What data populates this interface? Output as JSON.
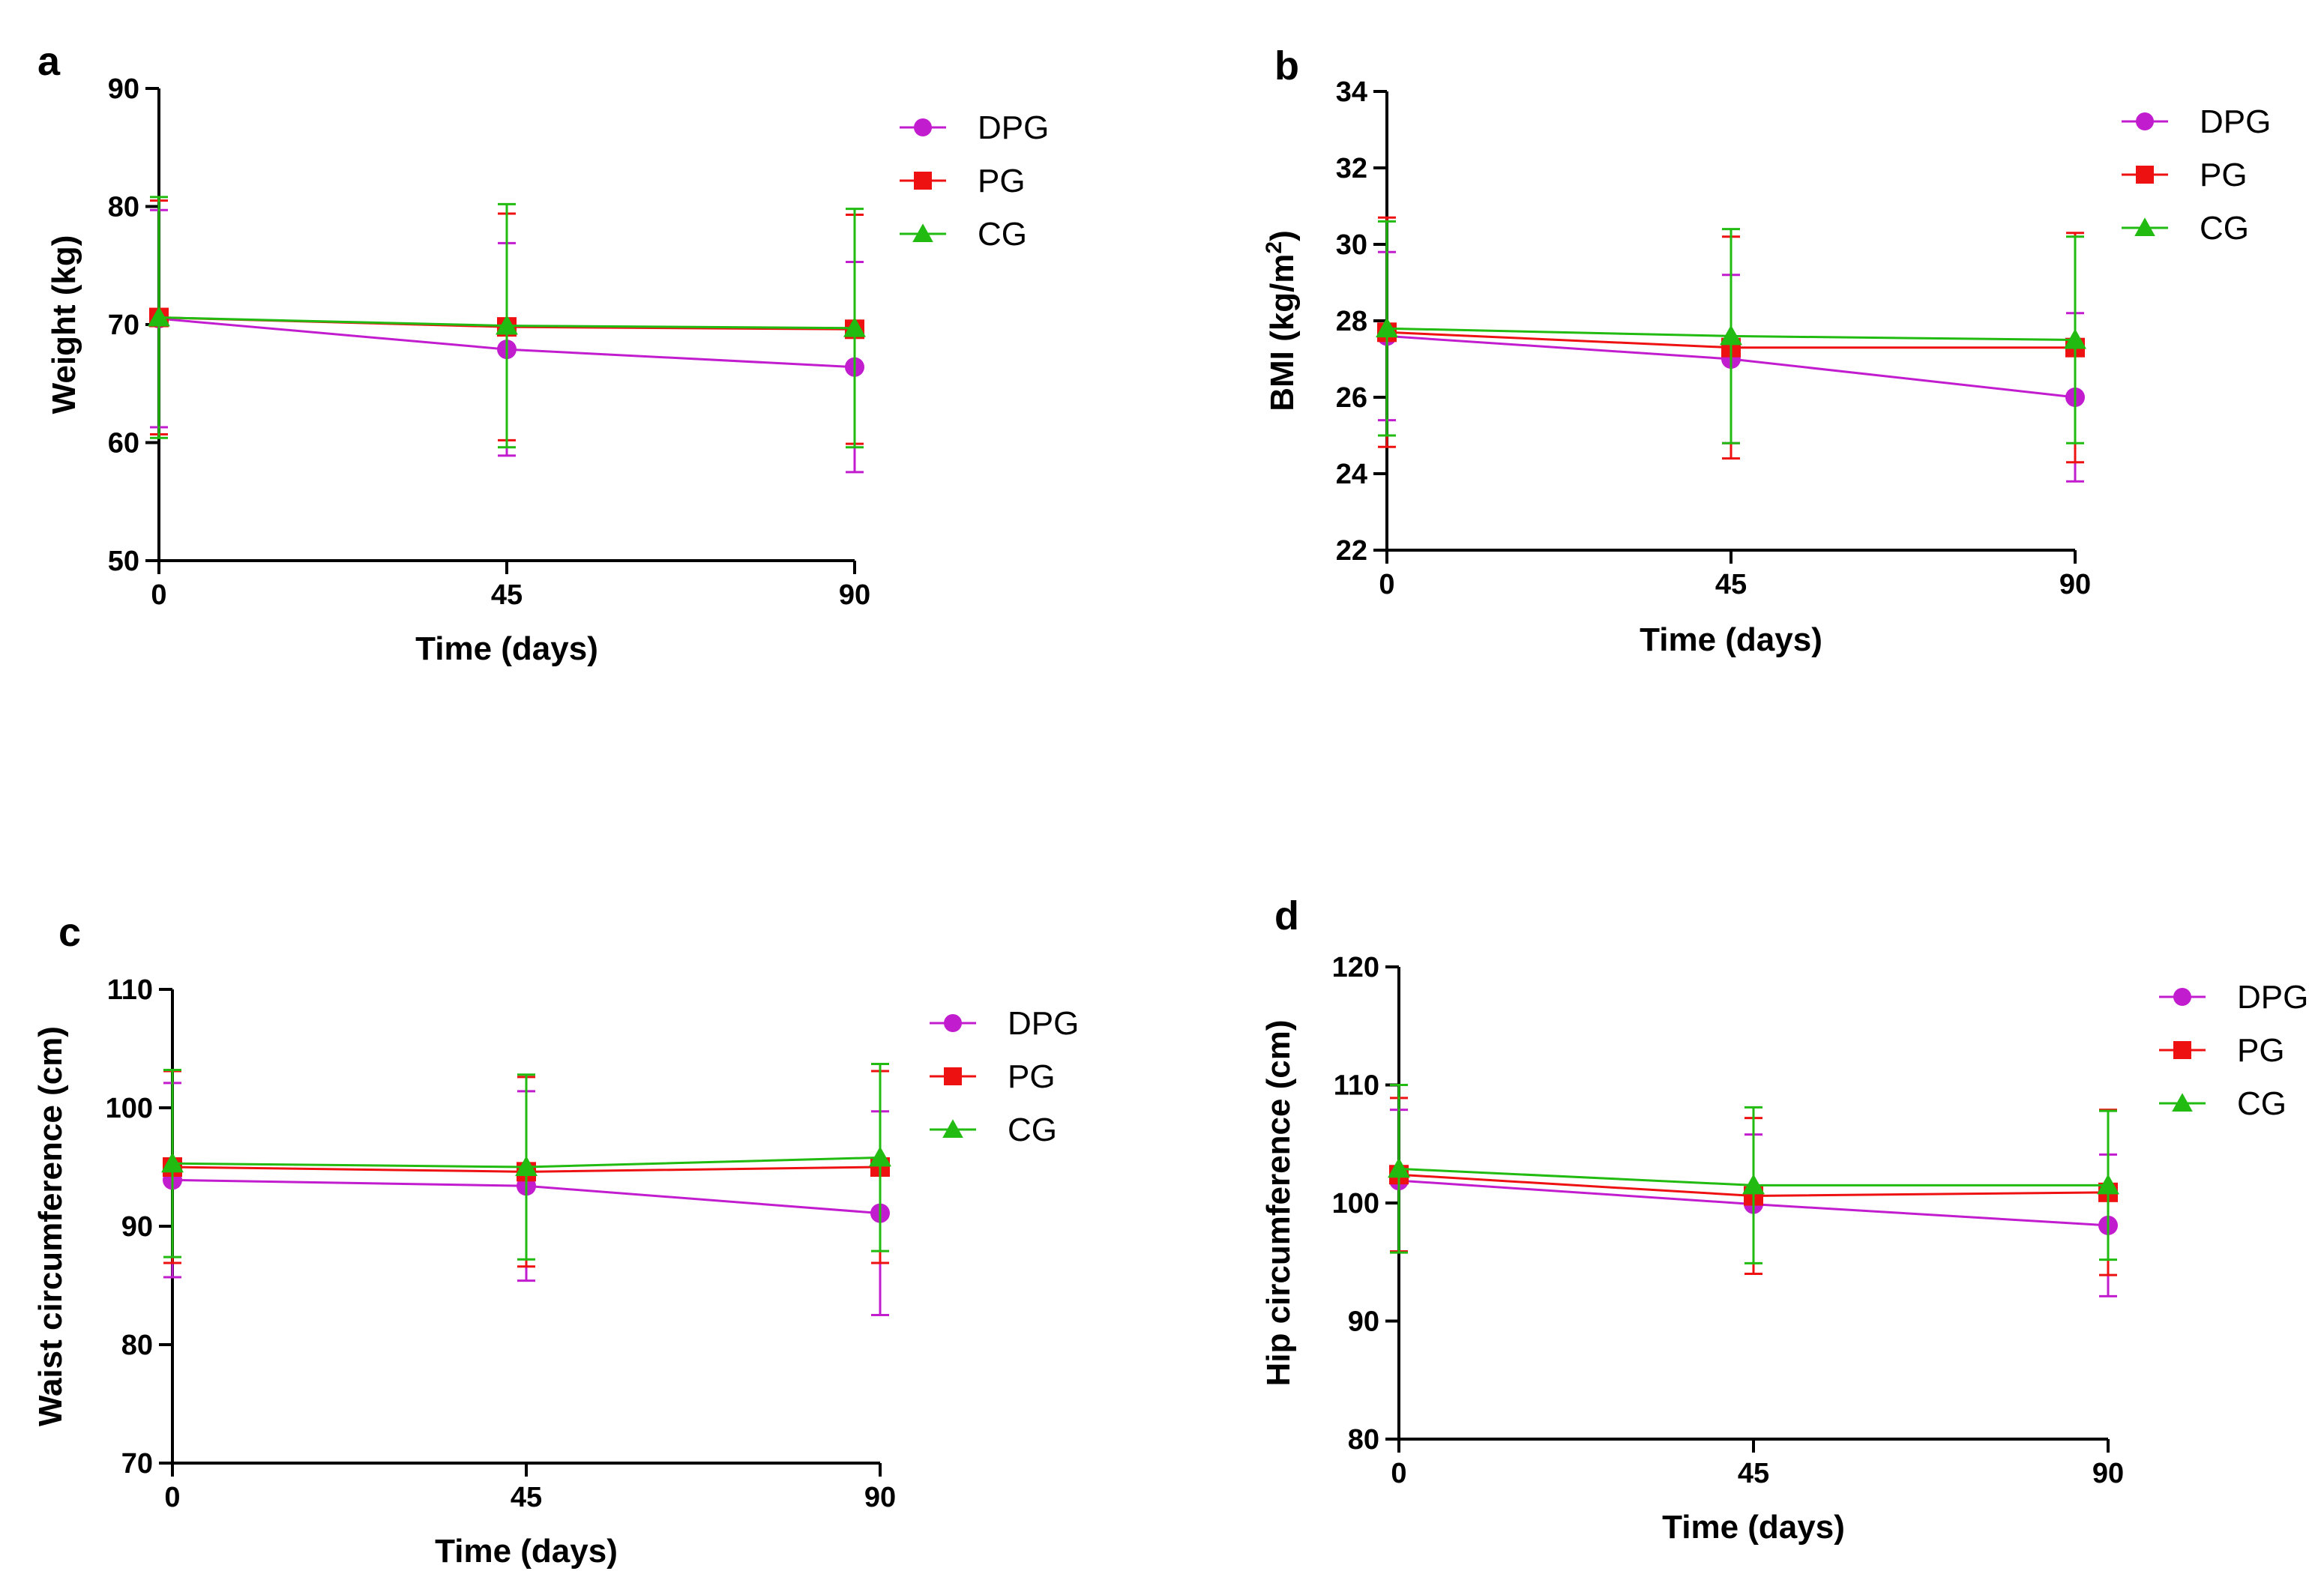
{
  "colors": {
    "DPG": "#c21ccf",
    "PG": "#ee1111",
    "CG": "#22bb11"
  },
  "chart_data": [
    {
      "panel": "a",
      "type": "line",
      "x": [
        0,
        45,
        90
      ],
      "xticks": [
        "0",
        "45",
        "90"
      ],
      "xlabel": "Time (days)",
      "ylabel": "Weight (kg)",
      "ylabel_sup": "",
      "ylabel_tail": "",
      "ylim": [
        50,
        90
      ],
      "yticks": [
        "50",
        "60",
        "70",
        "80",
        "90"
      ],
      "legend": "top-right",
      "series": [
        {
          "name": "DPG",
          "marker": "circle",
          "values": [
            70.5,
            67.9,
            66.4
          ],
          "err": [
            9.2,
            9.0,
            8.9
          ]
        },
        {
          "name": "PG",
          "marker": "square",
          "values": [
            70.6,
            69.8,
            69.6
          ],
          "err": [
            9.9,
            9.6,
            9.7
          ]
        },
        {
          "name": "CG",
          "marker": "triangle",
          "values": [
            70.6,
            69.9,
            69.7
          ],
          "err": [
            10.2,
            10.3,
            10.1
          ]
        }
      ]
    },
    {
      "panel": "b",
      "type": "line",
      "x": [
        0,
        45,
        90
      ],
      "xticks": [
        "0",
        "45",
        "90"
      ],
      "xlabel": "Time (days)",
      "ylabel": "BMI (kg/m",
      "ylabel_sup": "2",
      "ylabel_tail": ")",
      "ylim": [
        22,
        34
      ],
      "yticks": [
        "22",
        "24",
        "26",
        "28",
        "30",
        "32",
        "34"
      ],
      "legend": "top-right",
      "series": [
        {
          "name": "DPG",
          "marker": "circle",
          "values": [
            27.6,
            27.0,
            26.0
          ],
          "err": [
            2.2,
            2.2,
            2.2
          ]
        },
        {
          "name": "PG",
          "marker": "square",
          "values": [
            27.7,
            27.3,
            27.3
          ],
          "err": [
            3.0,
            2.9,
            3.0
          ]
        },
        {
          "name": "CG",
          "marker": "triangle",
          "values": [
            27.8,
            27.6,
            27.5
          ],
          "err": [
            2.8,
            2.8,
            2.7
          ]
        }
      ]
    },
    {
      "panel": "c",
      "type": "line",
      "x": [
        0,
        45,
        90
      ],
      "xticks": [
        "0",
        "45",
        "90"
      ],
      "xlabel": "Time (days)",
      "ylabel": "Waist circumference (cm)",
      "ylabel_sup": "",
      "ylabel_tail": "",
      "ylim": [
        70,
        110
      ],
      "yticks": [
        "70",
        "80",
        "90",
        "100",
        "110"
      ],
      "legend": "top-right",
      "series": [
        {
          "name": "DPG",
          "marker": "circle",
          "values": [
            93.9,
            93.4,
            91.1
          ],
          "err": [
            8.2,
            8.0,
            8.6
          ]
        },
        {
          "name": "PG",
          "marker": "square",
          "values": [
            95.0,
            94.6,
            95.0
          ],
          "err": [
            8.1,
            8.0,
            8.1
          ]
        },
        {
          "name": "CG",
          "marker": "triangle",
          "values": [
            95.3,
            95.0,
            95.8
          ],
          "err": [
            7.9,
            7.8,
            7.9
          ]
        }
      ]
    },
    {
      "panel": "d",
      "type": "line",
      "x": [
        0,
        45,
        90
      ],
      "xticks": [
        "0",
        "45",
        "90"
      ],
      "xlabel": "Time (days)",
      "ylabel": "Hip circumference (cm)",
      "ylabel_sup": "",
      "ylabel_tail": "",
      "ylim": [
        80,
        120
      ],
      "yticks": [
        "80",
        "90",
        "100",
        "110",
        "120"
      ],
      "legend": "top-right",
      "series": [
        {
          "name": "DPG",
          "marker": "circle",
          "values": [
            101.9,
            99.9,
            98.1
          ],
          "err": [
            6.0,
            5.9,
            6.0
          ]
        },
        {
          "name": "PG",
          "marker": "square",
          "values": [
            102.4,
            100.6,
            100.9
          ],
          "err": [
            6.5,
            6.6,
            7.0
          ]
        },
        {
          "name": "CG",
          "marker": "triangle",
          "values": [
            102.9,
            101.5,
            101.5
          ],
          "err": [
            7.1,
            6.6,
            6.3
          ]
        }
      ]
    }
  ]
}
